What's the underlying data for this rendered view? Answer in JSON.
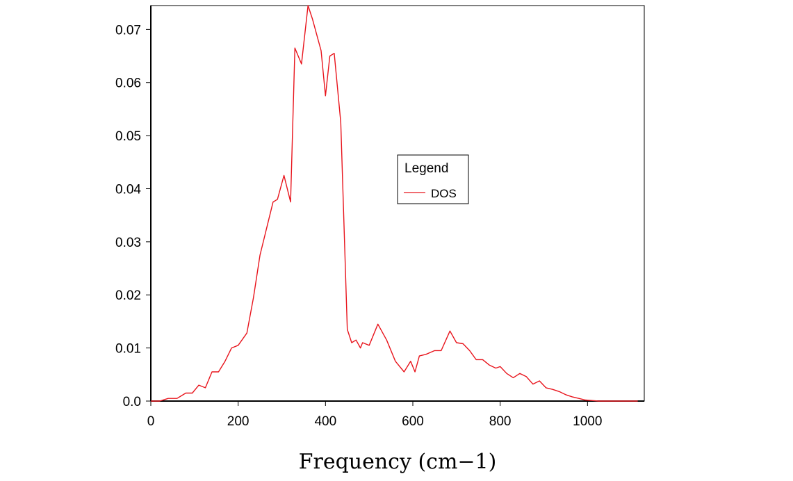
{
  "chart_data": {
    "type": "line",
    "title": "",
    "xlabel": "Frequency (cm−1)",
    "ylabel": "",
    "xlim": [
      0,
      1130
    ],
    "ylim": [
      0,
      0.0745
    ],
    "xticks": [
      0,
      200,
      400,
      600,
      800,
      1000
    ],
    "xtick_labels": [
      "0",
      "200",
      "400",
      "600",
      "800",
      "1000"
    ],
    "yticks": [
      0,
      0.01,
      0.02,
      0.03,
      0.04,
      0.05,
      0.06,
      0.07
    ],
    "ytick_labels": [
      "0.0",
      "0.01",
      "0.02",
      "0.03",
      "0.04",
      "0.05",
      "0.06",
      "0.07"
    ],
    "grid": false,
    "legend": {
      "title": "Legend",
      "position": "center-right"
    },
    "series": [
      {
        "name": "DOS",
        "color": "#e8141c",
        "x": [
          0,
          20,
          40,
          60,
          70,
          80,
          95,
          110,
          125,
          140,
          155,
          170,
          185,
          200,
          220,
          235,
          250,
          265,
          280,
          290,
          305,
          320,
          330,
          345,
          360,
          370,
          390,
          400,
          410,
          420,
          435,
          450,
          460,
          470,
          480,
          485,
          500,
          520,
          540,
          560,
          580,
          595,
          605,
          615,
          630,
          650,
          665,
          685,
          700,
          715,
          730,
          745,
          760,
          775,
          790,
          800,
          815,
          830,
          845,
          860,
          875,
          890,
          905,
          920,
          935,
          950,
          965,
          980,
          995,
          1010,
          1025,
          1040,
          1055,
          1070,
          1085,
          1100,
          1115
        ],
        "y": [
          0,
          0,
          0.0005,
          0.0005,
          0.001,
          0.0015,
          0.0015,
          0.003,
          0.0025,
          0.0055,
          0.0055,
          0.0075,
          0.01,
          0.0105,
          0.0128,
          0.0195,
          0.0275,
          0.0325,
          0.0375,
          0.038,
          0.0425,
          0.0375,
          0.0665,
          0.0635,
          0.0745,
          0.072,
          0.066,
          0.0575,
          0.065,
          0.0655,
          0.0525,
          0.0135,
          0.011,
          0.0115,
          0.01,
          0.011,
          0.0105,
          0.0145,
          0.0115,
          0.0075,
          0.0055,
          0.0075,
          0.0055,
          0.0085,
          0.0088,
          0.0095,
          0.0095,
          0.0132,
          0.011,
          0.0108,
          0.0095,
          0.0078,
          0.0078,
          0.0068,
          0.0062,
          0.0065,
          0.0052,
          0.0044,
          0.0052,
          0.0046,
          0.0032,
          0.0038,
          0.0025,
          0.0022,
          0.0018,
          0.0012,
          0.0008,
          0.0005,
          0.0002,
          0.0001,
          0,
          0,
          0,
          0,
          0,
          0,
          0
        ]
      }
    ]
  }
}
